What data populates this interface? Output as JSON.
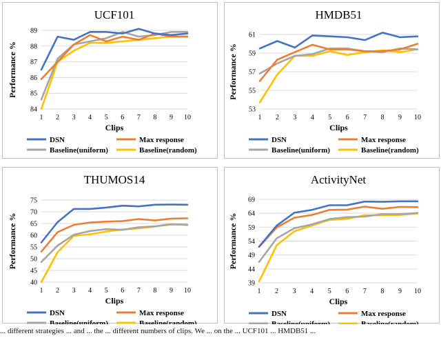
{
  "caption": "... different strategies ... and ... the ... different numbers of clips. We ... on the ... UCF101 ... HMDB51 ...",
  "chart_data": [
    {
      "type": "line",
      "title": "UCF101",
      "xlabel": "Clips",
      "ylabel": "Performance %",
      "x": [
        1,
        2,
        3,
        4,
        5,
        6,
        7,
        8,
        9,
        10
      ],
      "ylim": [
        84,
        89
      ],
      "yticks": [
        84,
        85,
        86,
        87,
        88,
        89
      ],
      "series": [
        {
          "name": "DSN",
          "color": "#4472C4",
          "values": [
            86.5,
            88.6,
            88.4,
            88.9,
            88.9,
            88.8,
            89.1,
            88.8,
            88.7,
            88.8
          ]
        },
        {
          "name": "Max response",
          "color": "#ED7D31",
          "values": [
            85.9,
            87.0,
            88.1,
            88.7,
            88.3,
            88.6,
            88.4,
            88.8,
            88.6,
            88.6
          ]
        },
        {
          "name": "Baseline(uniform)",
          "color": "#A5A5A5",
          "values": [
            84.6,
            87.2,
            88.1,
            88.3,
            88.5,
            88.9,
            88.6,
            88.7,
            88.9,
            88.9
          ]
        },
        {
          "name": "Baseline(random)",
          "color": "#FFC000",
          "values": [
            84.0,
            87.0,
            87.7,
            88.2,
            88.2,
            88.3,
            88.4,
            88.5,
            88.6,
            88.6
          ]
        }
      ]
    },
    {
      "type": "line",
      "title": "HMDB51",
      "xlabel": "Clips",
      "ylabel": "Performance %",
      "x": [
        1,
        2,
        3,
        4,
        5,
        6,
        7,
        8,
        9,
        10
      ],
      "ylim": [
        53,
        61
      ],
      "yticks": [
        53,
        55,
        57,
        59,
        61
      ],
      "series": [
        {
          "name": "DSN",
          "color": "#4472C4",
          "values": [
            59.5,
            60.3,
            59.6,
            60.9,
            60.8,
            60.7,
            60.4,
            61.2,
            60.7,
            60.8
          ]
        },
        {
          "name": "Max response",
          "color": "#ED7D31",
          "values": [
            56.0,
            58.3,
            59.1,
            59.9,
            59.4,
            59.4,
            59.2,
            59.2,
            59.4,
            60.0
          ]
        },
        {
          "name": "Baseline(uniform)",
          "color": "#A5A5A5",
          "values": [
            56.8,
            57.9,
            58.7,
            58.9,
            59.5,
            59.5,
            59.2,
            59.1,
            59.5,
            59.4
          ]
        },
        {
          "name": "Baseline(random)",
          "color": "#FFC000",
          "values": [
            53.7,
            56.7,
            58.7,
            58.7,
            59.2,
            58.8,
            59.1,
            59.3,
            59.1,
            59.4
          ]
        }
      ]
    },
    {
      "type": "line",
      "title": "THUMOS14",
      "xlabel": "Clips",
      "ylabel": "Performance %",
      "x": [
        1,
        2,
        3,
        4,
        5,
        6,
        7,
        8,
        9,
        10
      ],
      "ylim": [
        40,
        75
      ],
      "yticks": [
        40,
        45,
        50,
        55,
        60,
        65,
        70,
        75
      ],
      "series": [
        {
          "name": "DSN",
          "color": "#4472C4",
          "values": [
            56.9,
            65.6,
            71.2,
            71.2,
            71.8,
            72.6,
            72.3,
            73.0,
            73.1,
            73.0
          ]
        },
        {
          "name": "Max response",
          "color": "#ED7D31",
          "values": [
            53.0,
            61.3,
            64.4,
            65.4,
            65.8,
            66.0,
            66.9,
            66.3,
            67.1,
            67.2
          ]
        },
        {
          "name": "Baseline(uniform)",
          "color": "#A5A5A5",
          "values": [
            48.6,
            55.6,
            60.2,
            61.8,
            62.6,
            62.3,
            63.4,
            63.8,
            64.6,
            64.5
          ]
        },
        {
          "name": "Baseline(random)",
          "color": "#FFC000",
          "values": [
            40.0,
            52.8,
            59.7,
            60.4,
            61.6,
            62.4,
            62.9,
            63.7,
            64.8,
            64.3
          ]
        }
      ]
    },
    {
      "type": "line",
      "title": "ActivityNet",
      "xlabel": "Clips",
      "ylabel": "Performance %",
      "x": [
        1,
        2,
        3,
        4,
        5,
        6,
        7,
        8,
        9,
        10
      ],
      "ylim": [
        39,
        69
      ],
      "yticks": [
        39,
        44,
        49,
        54,
        59,
        64,
        69
      ],
      "series": [
        {
          "name": "DSN",
          "color": "#4472C4",
          "values": [
            52.0,
            59.6,
            64.2,
            65.2,
            66.9,
            66.9,
            68.2,
            68.1,
            68.3,
            68.3
          ]
        },
        {
          "name": "Max response",
          "color": "#ED7D31",
          "values": [
            51.9,
            58.9,
            62.4,
            63.4,
            65.2,
            65.3,
            66.4,
            65.6,
            66.3,
            66.2
          ]
        },
        {
          "name": "Baseline(uniform)",
          "color": "#A5A5A5",
          "values": [
            46.5,
            55.0,
            58.6,
            60.0,
            61.9,
            62.6,
            62.8,
            63.7,
            63.7,
            64.1
          ]
        },
        {
          "name": "Baseline(random)",
          "color": "#FFC000",
          "values": [
            39.5,
            52.5,
            57.5,
            59.6,
            61.6,
            62.0,
            63.3,
            63.3,
            63.4,
            63.9
          ]
        }
      ]
    }
  ]
}
